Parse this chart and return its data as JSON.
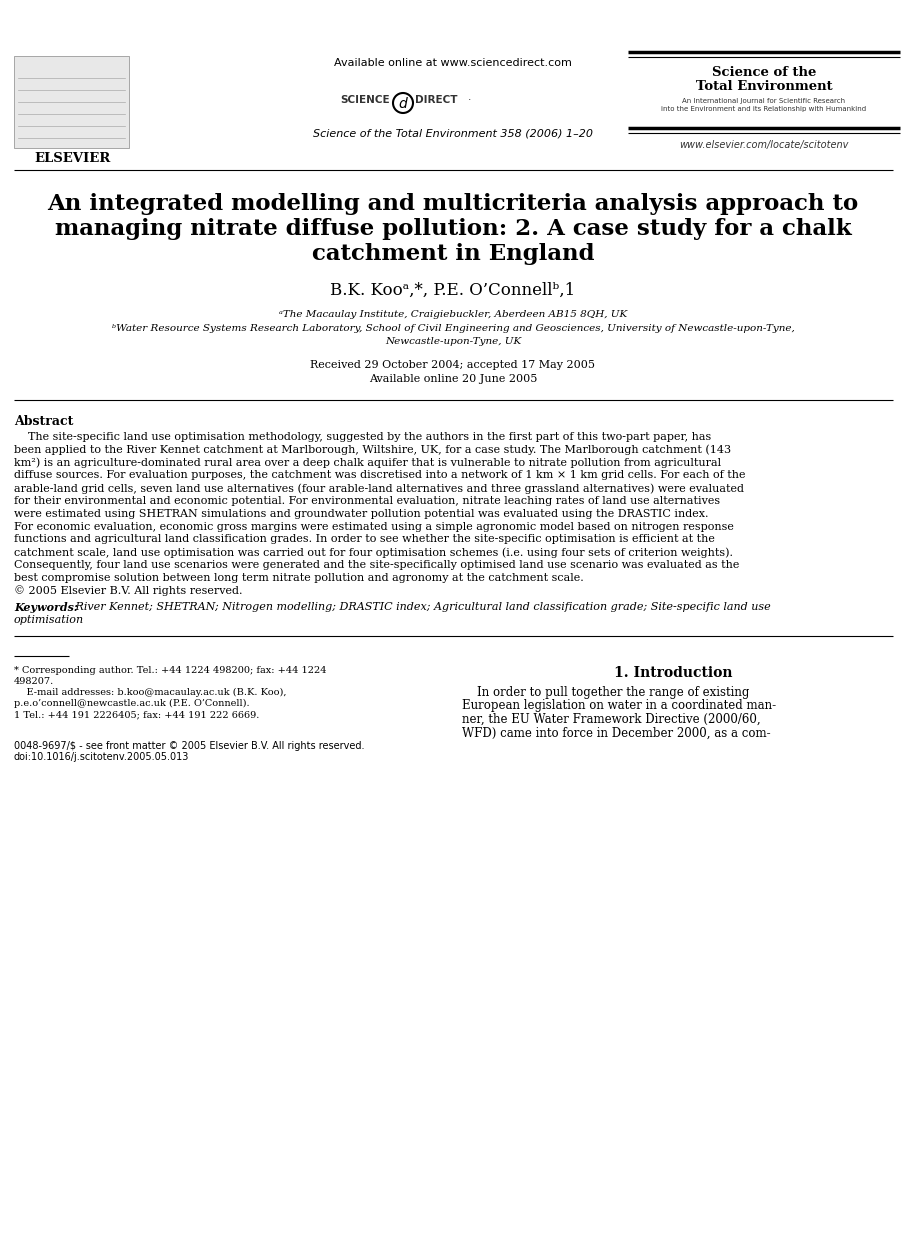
{
  "bg_color": "#ffffff",
  "header_available_online": "Available online at www.sciencedirect.com",
  "journal_ref": "Science of the Total Environment 358 (2006) 1–20",
  "journal_name_right_line1": "Science of the",
  "journal_name_right_line2": "Total Environment",
  "journal_subtext_right": "An International Journal for Scientific Research\ninto the Environment and its Relationship with Humankind",
  "elsevier_text": "ELSEVIER",
  "www_text": "www.elsevier.com/locate/scitotenv",
  "title_line1": "An integrated modelling and multicriteria analysis approach to",
  "title_line2": "managing nitrate diffuse pollution: 2. A case study for a chalk",
  "title_line3": "catchment in England",
  "authors": "B.K. Kooᵃ,*, P.E. O’Connellᵇ,1",
  "affil_a": "ᵃThe Macaulay Institute, Craigiebuckler, Aberdeen AB15 8QH, UK",
  "affil_b_line1": "ᵇWater Resource Systems Research Laboratory, School of Civil Engineering and Geosciences, University of Newcastle-upon-Tyne,",
  "affil_b_line2": "Newcastle-upon-Tyne, UK",
  "received": "Received 29 October 2004; accepted 17 May 2005",
  "available_online_date": "Available online 20 June 2005",
  "abstract_title": "Abstract",
  "abstract_lines": [
    "    The site-specific land use optimisation methodology, suggested by the authors in the first part of this two-part paper, has",
    "been applied to the River Kennet catchment at Marlborough, Wiltshire, UK, for a case study. The Marlborough catchment (143",
    "km²) is an agriculture-dominated rural area over a deep chalk aquifer that is vulnerable to nitrate pollution from agricultural",
    "diffuse sources. For evaluation purposes, the catchment was discretised into a network of 1 km × 1 km grid cells. For each of the",
    "arable-land grid cells, seven land use alternatives (four arable-land alternatives and three grassland alternatives) were evaluated",
    "for their environmental and economic potential. For environmental evaluation, nitrate leaching rates of land use alternatives",
    "were estimated using SHETRAN simulations and groundwater pollution potential was evaluated using the DRASTIC index.",
    "For economic evaluation, economic gross margins were estimated using a simple agronomic model based on nitrogen response",
    "functions and agricultural land classification grades. In order to see whether the site-specific optimisation is efficient at the",
    "catchment scale, land use optimisation was carried out for four optimisation schemes (i.e. using four sets of criterion weights).",
    "Consequently, four land use scenarios were generated and the site-specifically optimised land use scenario was evaluated as the",
    "best compromise solution between long term nitrate pollution and agronomy at the catchment scale.",
    "© 2005 Elsevier B.V. All rights reserved."
  ],
  "keywords_label": "Keywords:",
  "keywords_line1": " River Kennet; SHETRAN; Nitrogen modelling; DRASTIC index; Agricultural land classification grade; Site-specific land use",
  "keywords_line2": "optimisation",
  "section1_title": "1. Introduction",
  "intro_lines": [
    "    In order to pull together the range of existing",
    "European legislation on water in a coordinated man-",
    "ner, the EU Water Framework Directive (2000/60,",
    "WFD) came into force in December 2000, as a com-"
  ],
  "fn_lines": [
    "* Corresponding author. Tel.: +44 1224 498200; fax: +44 1224",
    "498207.",
    "    E-mail addresses: b.koo@macaulay.ac.uk (B.K. Koo),",
    "p.e.o’connell@newcastle.ac.uk (P.E. O’Connell).",
    "1 Tel.: +44 191 2226405; fax: +44 191 222 6669."
  ],
  "footer_issn": "0048-9697/$ - see front matter © 2005 Elsevier B.V. All rights reserved.",
  "footer_doi": "doi:10.1016/j.scitotenv.2005.05.013"
}
